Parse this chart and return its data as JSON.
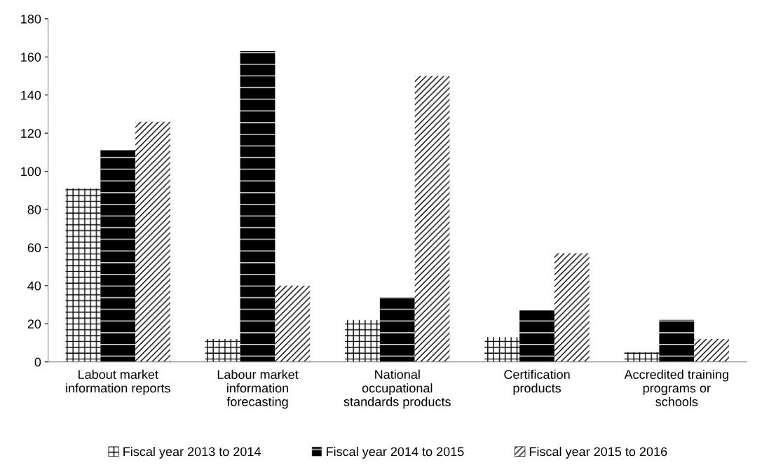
{
  "chart_data": {
    "type": "bar",
    "categories": [
      "Labout market\ninformation reports",
      "Labour market\ninformation\nforecasting",
      "National\noccupational\nstandards products",
      "Certification\nproducts",
      "Accredited training\nprograms or\nschools"
    ],
    "series": [
      {
        "name": "Fiscal year 2013 to 2014",
        "color": "#ffffff",
        "values": [
          91,
          12,
          22,
          13,
          5
        ]
      },
      {
        "name": "Fiscal year 2014 to 2015",
        "color": "#000000",
        "values": [
          111,
          163,
          34,
          27,
          22
        ]
      },
      {
        "name": "Fiscal year 2015 to 2016",
        "color": "#ffffff",
        "values": [
          126,
          40,
          150,
          57,
          12
        ]
      }
    ],
    "ylim": [
      0,
      180
    ],
    "yticks": [
      0,
      20,
      40,
      60,
      80,
      100,
      120,
      140,
      160,
      180
    ],
    "grid": false,
    "legend": "bottom"
  }
}
